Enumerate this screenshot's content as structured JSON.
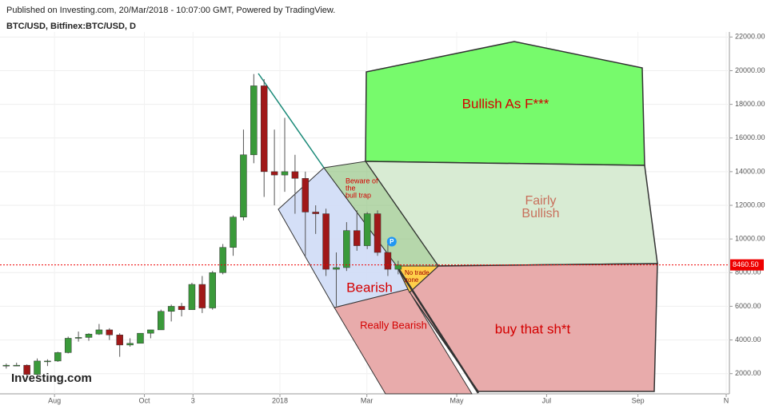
{
  "chart_data": {
    "type": "candlestick",
    "title": "Published on Investing.com, 20/Mar/2018 - 10:07:00 GMT, Powered by TradingView.",
    "subtitle": "BTC/USD, Bitfinex:BTC/USD, D",
    "logo": "Investing.com",
    "up_color": "#3a9a3a",
    "down_color": "#a01818",
    "xlim": [
      "2017-06-25",
      "2018-11-01"
    ],
    "xticks": [
      {
        "value": "2017-08-01",
        "label": "Aug"
      },
      {
        "value": "2017-10-01",
        "label": "Oct"
      },
      {
        "value": "2017-11-03",
        "label": "3"
      },
      {
        "value": "2018-01-01",
        "label": "2018"
      },
      {
        "value": "2018-03-01",
        "label": "Mar"
      },
      {
        "value": "2018-05-01",
        "label": "May"
      },
      {
        "value": "2018-07-01",
        "label": "Jul"
      },
      {
        "value": "2018-09-01",
        "label": "Sep"
      },
      {
        "value": "2018-11-01",
        "label": "N"
      }
    ],
    "ylim": [
      800,
      22300
    ],
    "yticks": [
      {
        "value": 2000,
        "label": "2000.00"
      },
      {
        "value": 4000,
        "label": "4000.00"
      },
      {
        "value": 6000,
        "label": "6000.00"
      },
      {
        "value": 8000,
        "label": "8000.00"
      },
      {
        "value": 10000,
        "label": "10000.00"
      },
      {
        "value": 12000,
        "label": "12000.00"
      },
      {
        "value": 14000,
        "label": "14000.00"
      },
      {
        "value": 16000,
        "label": "16000.00"
      },
      {
        "value": 18000,
        "label": "18000.00"
      },
      {
        "value": 20000,
        "label": "20000.00"
      },
      {
        "value": 22000,
        "label": "22000.00"
      }
    ],
    "last_price": {
      "value": 8460.5,
      "label": "8460.50"
    },
    "marker": "P",
    "x": [
      "2017-06-26",
      "2017-07-03",
      "2017-07-10",
      "2017-07-17",
      "2017-07-24",
      "2017-07-31",
      "2017-08-07",
      "2017-08-14",
      "2017-08-21",
      "2017-08-28",
      "2017-09-04",
      "2017-09-11",
      "2017-09-18",
      "2017-09-25",
      "2017-10-02",
      "2017-10-09",
      "2017-10-16",
      "2017-10-23",
      "2017-10-30",
      "2017-11-06",
      "2017-11-13",
      "2017-11-20",
      "2017-11-27",
      "2017-12-04",
      "2017-12-11",
      "2017-12-18",
      "2017-12-25",
      "2018-01-01",
      "2018-01-08",
      "2018-01-15",
      "2018-01-22",
      "2018-01-29",
      "2018-02-05",
      "2018-02-12",
      "2018-02-19",
      "2018-02-26",
      "2018-03-05",
      "2018-03-12",
      "2018-03-19"
    ],
    "open": [
      2450,
      2500,
      2500,
      1950,
      2750,
      2750,
      3250,
      4100,
      4150,
      4350,
      4600,
      4300,
      3700,
      3800,
      4400,
      4600,
      5700,
      6000,
      5800,
      7300,
      5900,
      8000,
      9500,
      11300,
      15000,
      19100,
      14000,
      13800,
      14000,
      13600,
      11600,
      11500,
      8200,
      8300,
      10500,
      9600,
      11500,
      9200,
      8200
    ],
    "high": [
      2600,
      2650,
      2550,
      2900,
      2850,
      3300,
      4200,
      4500,
      4400,
      4950,
      4700,
      4400,
      4100,
      4400,
      4600,
      5800,
      6100,
      6200,
      7400,
      7800,
      8100,
      9700,
      11400,
      16500,
      19800,
      19500,
      16500,
      17200,
      15000,
      14000,
      12000,
      11800,
      9200,
      11000,
      11700,
      11600,
      11700,
      9900,
      8700
    ],
    "low": [
      2300,
      2450,
      1900,
      1900,
      2450,
      2700,
      3200,
      3900,
      3950,
      4300,
      4000,
      3000,
      3600,
      3800,
      4100,
      4600,
      5100,
      5400,
      5800,
      5600,
      5800,
      7900,
      9000,
      11100,
      14500,
      12500,
      12000,
      12800,
      11500,
      9000,
      10300,
      7800,
      6000,
      8100,
      9300,
      9400,
      9000,
      7800,
      7900
    ],
    "close": [
      2500,
      2500,
      1950,
      2750,
      2750,
      3250,
      4100,
      4150,
      4350,
      4600,
      4300,
      3700,
      3800,
      4400,
      4600,
      5700,
      6000,
      5800,
      7300,
      5900,
      8000,
      9500,
      11300,
      15000,
      19100,
      14000,
      13800,
      14000,
      13600,
      11600,
      11500,
      8200,
      8300,
      10500,
      9600,
      11500,
      9200,
      8200,
      8460.5
    ],
    "annotations": [
      {
        "lines": [
          "Bullish As F***"
        ]
      },
      {
        "lines": [
          "Fairly",
          "Bullish"
        ]
      },
      {
        "lines": [
          "Beware of",
          "the",
          "bull trap"
        ]
      },
      {
        "lines": [
          "No trade",
          "zone"
        ]
      },
      {
        "lines": [
          "Bearish"
        ]
      },
      {
        "lines": [
          "Really Bearish"
        ]
      },
      {
        "lines": [
          "buy that sh*t"
        ]
      }
    ]
  }
}
